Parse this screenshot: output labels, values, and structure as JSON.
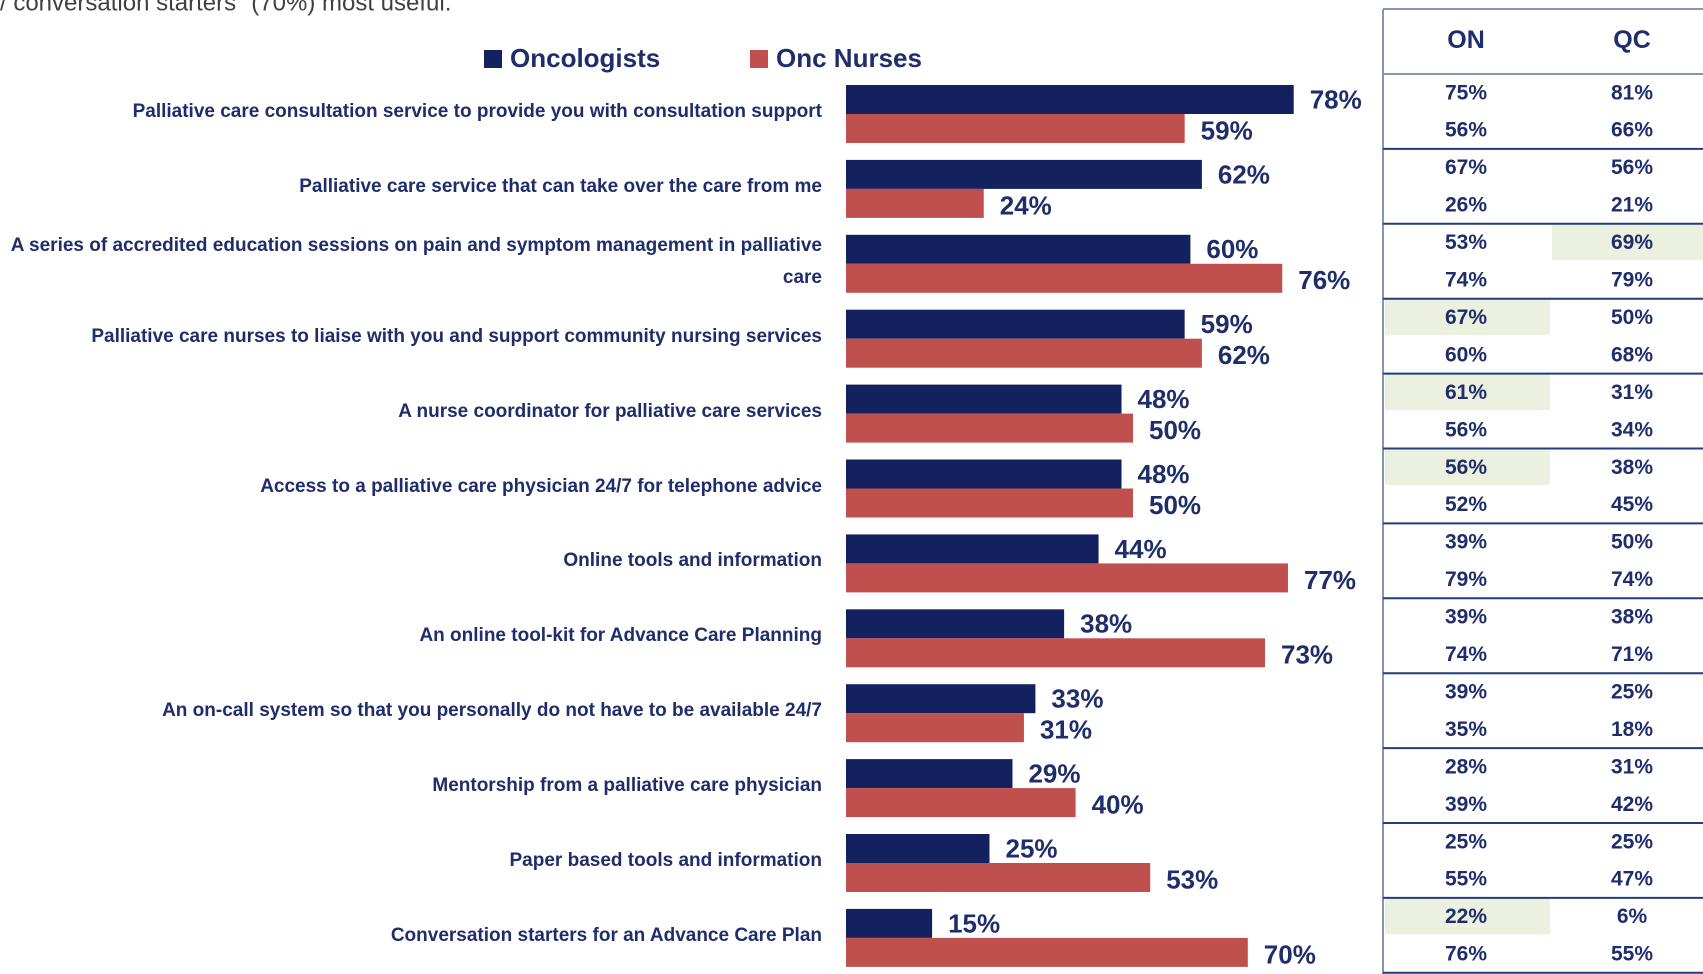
{
  "chart_data": {
    "type": "bar",
    "orientation": "horizontal",
    "subtitle": "/ conversation starters\" (70%) most useful.",
    "categories": [
      "Palliative care consultation service to provide you with consultation support",
      "Palliative care service that can take over the care from me",
      "A series of accredited education sessions on pain and symptom management in palliative care",
      "Palliative care nurses to liaise with you and support community nursing services",
      "A nurse coordinator for palliative care services",
      "Access to a palliative care physician 24/7 for telephone advice",
      "Online tools and information",
      "An online tool-kit for Advance Care Planning",
      "An on-call system so that you personally do not have to be available 24/7",
      "Mentorship from a palliative care physician",
      "Paper based tools and information",
      "Conversation starters for an Advance Care Plan"
    ],
    "series": [
      {
        "name": "Oncologists",
        "color": "#14215f",
        "values": [
          78,
          62,
          60,
          59,
          48,
          48,
          44,
          38,
          33,
          29,
          25,
          15
        ],
        "value_labels": [
          "78%",
          "62%",
          "60%",
          "59%",
          "48%",
          "48%",
          "44%",
          "38%",
          "33%",
          "29%",
          "25%",
          "15%"
        ]
      },
      {
        "name": "Onc Nurses",
        "color": "#c0504d",
        "values": [
          59,
          24,
          76,
          62,
          50,
          50,
          77,
          73,
          31,
          40,
          53,
          70
        ],
        "value_labels": [
          "59%",
          "24%",
          "76%",
          "62%",
          "50%",
          "50%",
          "77%",
          "73%",
          "31%",
          "40%",
          "53%",
          "70%"
        ]
      }
    ],
    "legend": "top"
  },
  "table": {
    "header": [
      "ON",
      "QC"
    ],
    "rows": [
      [
        "75%",
        "81%"
      ],
      [
        "56%",
        "66%"
      ],
      [
        "67%",
        "56%"
      ],
      [
        "26%",
        "21%"
      ],
      [
        "53%",
        "69%"
      ],
      [
        "74%",
        "79%"
      ],
      [
        "67%",
        "50%"
      ],
      [
        "60%",
        "68%"
      ],
      [
        "61%",
        "31%"
      ],
      [
        "56%",
        "34%"
      ],
      [
        "56%",
        "38%"
      ],
      [
        "52%",
        "45%"
      ],
      [
        "39%",
        "50%"
      ],
      [
        "79%",
        "74%"
      ],
      [
        "39%",
        "38%"
      ],
      [
        "74%",
        "71%"
      ],
      [
        "39%",
        "25%"
      ],
      [
        "35%",
        "18%"
      ],
      [
        "28%",
        "31%"
      ],
      [
        "39%",
        "42%"
      ],
      [
        "25%",
        "25%"
      ],
      [
        "55%",
        "47%"
      ],
      [
        "22%",
        "6%"
      ],
      [
        "76%",
        "55%"
      ]
    ],
    "highlight_color": "#ebf1de",
    "highlighted": [
      [
        4,
        1
      ],
      [
        6,
        0
      ],
      [
        8,
        0
      ],
      [
        10,
        0
      ],
      [
        22,
        0
      ]
    ]
  }
}
